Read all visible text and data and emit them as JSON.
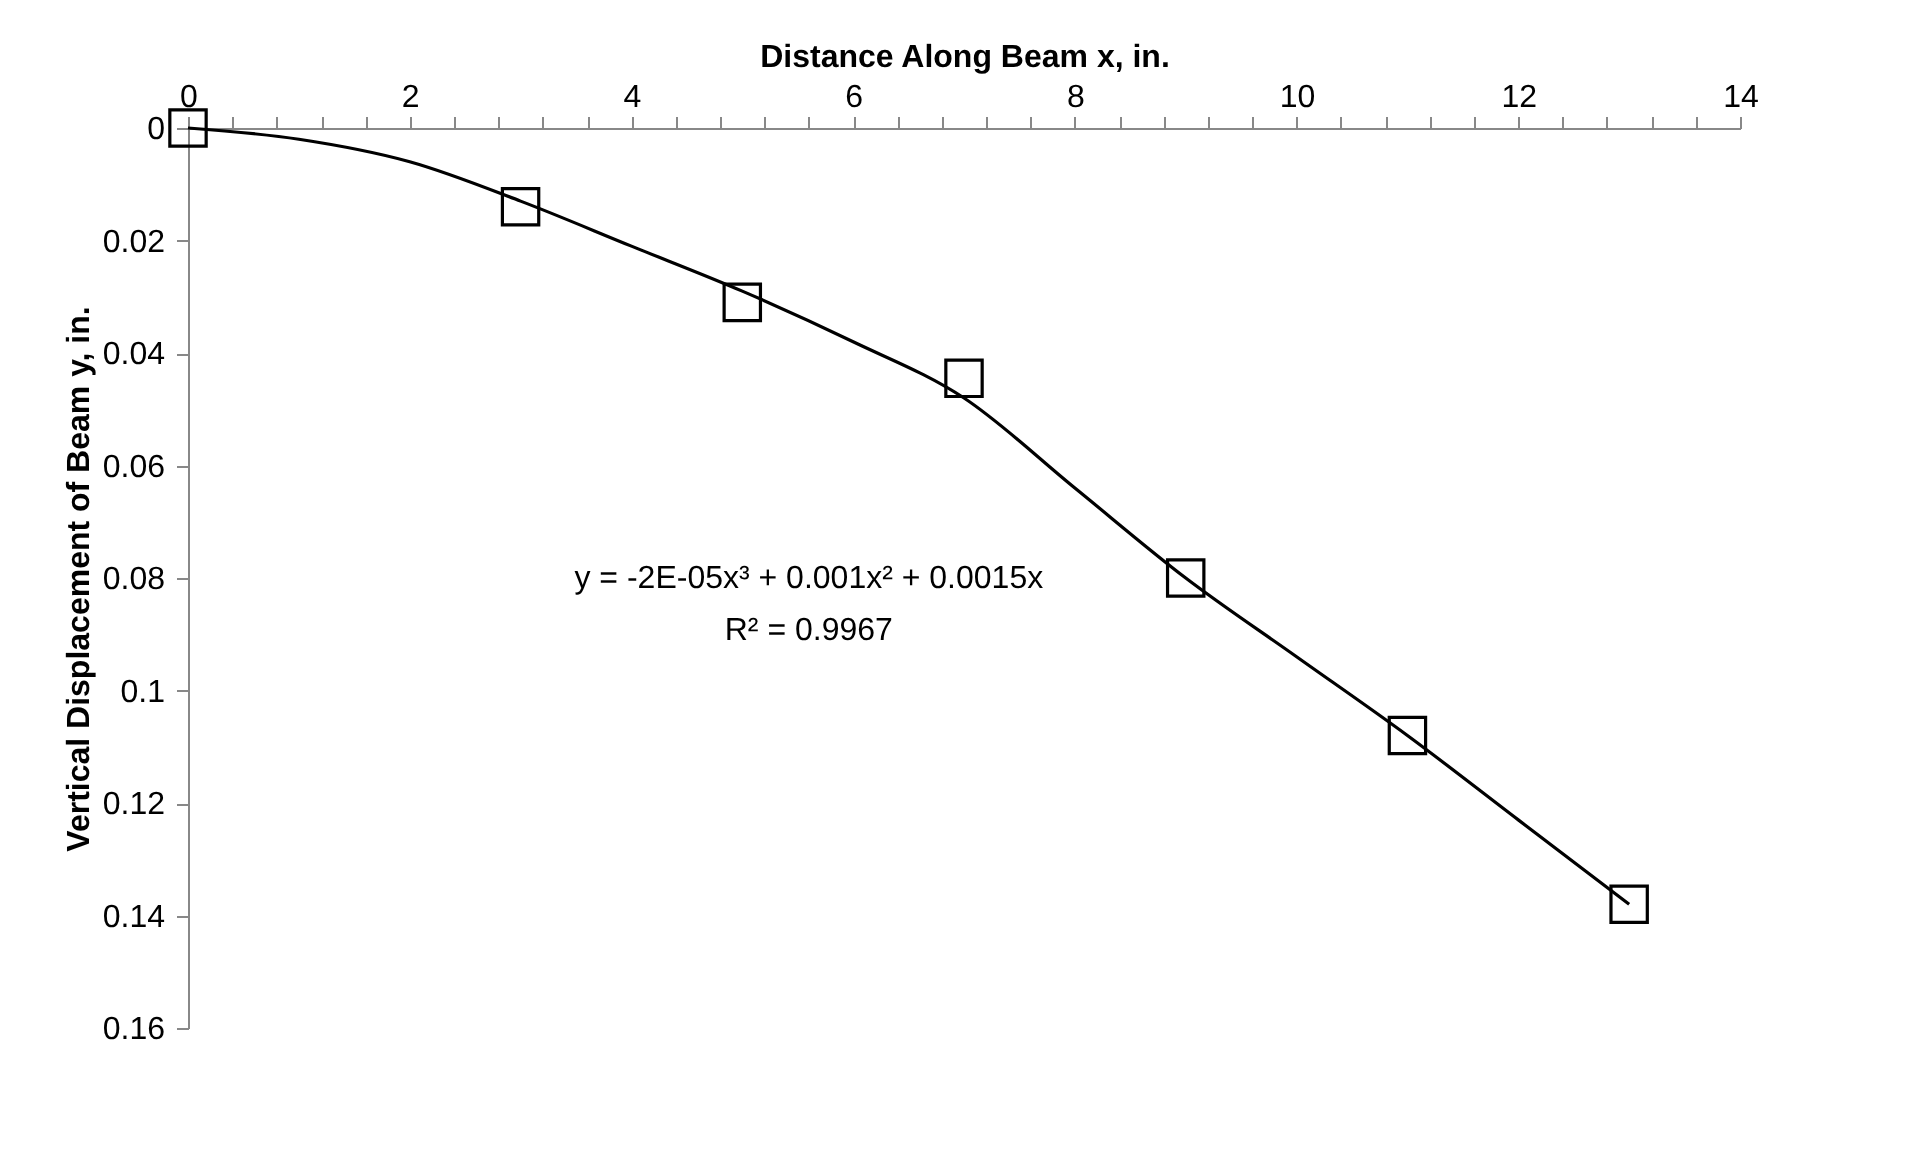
{
  "chart_data": {
    "type": "scatter",
    "xlabel": "Distance Along Beam x, in.",
    "ylabel": "Vertical Displacement of Beam y, in.",
    "annotations": [
      "y = -2E-05x³ + 0.001x² + 0.0015x",
      "R² = 0.9967"
    ],
    "x": [
      0,
      3,
      5,
      7,
      9,
      11,
      13
    ],
    "series": [
      {
        "color": "#000000",
        "marker": "square",
        "values": [
          0,
          0.014,
          0.031,
          0.0445,
          0.08,
          0.108,
          0.138
        ]
      },
      {
        "type": "line",
        "color": "#000000",
        "marker": "none",
        "line_style": "solid",
        "x": [
          0,
          1,
          2,
          3,
          4,
          5,
          6,
          7,
          8,
          9,
          10,
          11,
          12,
          13
        ],
        "values": [
          0,
          0.002,
          0.006,
          0.013,
          0.021,
          0.029,
          0.038,
          0.048,
          0.064,
          0.08,
          0.094,
          0.108,
          0.123,
          0.138
        ]
      }
    ],
    "xlim": [
      0,
      14
    ],
    "xticks": [
      0,
      {
        "value": 0.4,
        "label": null
      },
      {
        "value": 0.8,
        "label": null
      },
      {
        "value": 1.2,
        "label": null
      },
      {
        "value": 1.6,
        "label": null
      },
      2,
      {
        "value": 2.4,
        "label": null
      },
      {
        "value": 2.8,
        "label": null
      },
      {
        "value": 3.2,
        "label": null
      },
      {
        "value": 3.6,
        "label": null
      },
      4,
      {
        "value": 4.4,
        "label": null
      },
      {
        "value": 4.8,
        "label": null
      },
      {
        "value": 5.2,
        "label": null
      },
      {
        "value": 5.6,
        "label": null
      },
      6,
      {
        "value": 6.4,
        "label": null
      },
      {
        "value": 6.8,
        "label": null
      },
      {
        "value": 7.2,
        "label": null
      },
      {
        "value": 7.6,
        "label": null
      },
      8,
      {
        "value": 8.4,
        "label": null
      },
      {
        "value": 8.8,
        "label": null
      },
      {
        "value": 9.2,
        "label": null
      },
      {
        "value": 9.6,
        "label": null
      },
      10,
      {
        "value": 10.4,
        "label": null
      },
      {
        "value": 10.8,
        "label": null
      },
      {
        "value": 11.2,
        "label": null
      },
      {
        "value": 11.6,
        "label": null
      },
      12,
      {
        "value": 12.4,
        "label": null
      },
      {
        "value": 12.8,
        "label": null
      },
      {
        "value": 13.2,
        "label": null
      },
      {
        "value": 13.6,
        "label": null
      },
      14
    ],
    "ylim": [
      0.16,
      0
    ],
    "yticks": [
      0,
      0.02,
      0.04,
      0.06,
      0.08,
      0.1,
      0.12,
      0.14,
      0.16
    ],
    "grid": false
  }
}
